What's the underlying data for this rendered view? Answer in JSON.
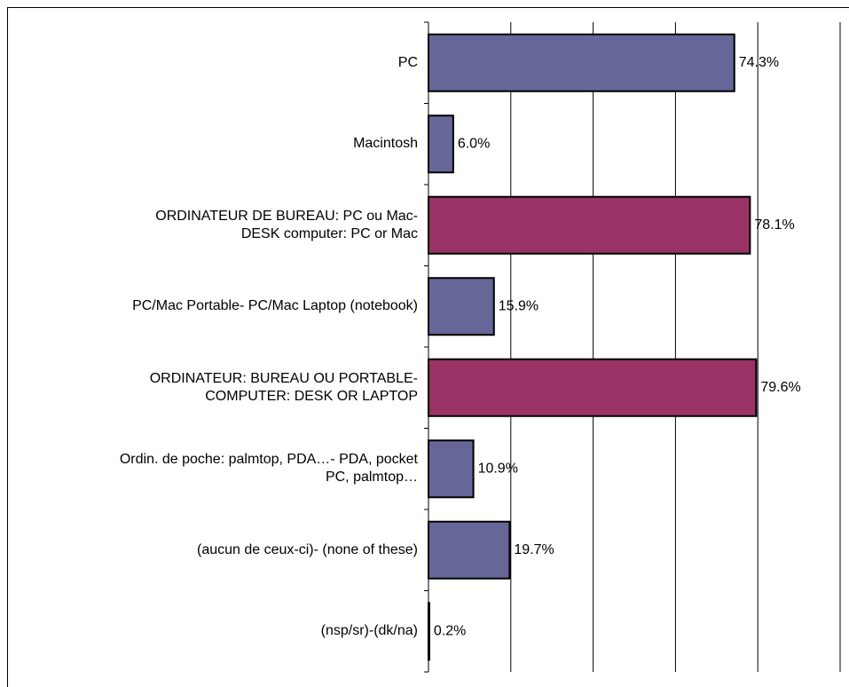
{
  "chart_data": {
    "type": "barh",
    "categories": [
      "PC",
      "Macintosh",
      "ORDINATEUR DE BUREAU: PC ou Mac-\nDESK computer: PC or Mac",
      "PC/Mac Portable- PC/Mac Laptop (notebook)",
      "ORDINATEUR: BUREAU OU PORTABLE-\nCOMPUTER: DESK OR LAPTOP",
      "Ordin. de poche: palmtop, PDA…- PDA, pocket\nPC, palmtop…",
      "(aucun de ceux-ci)- (none of these)",
      "(nsp/sr)-(dk/na)"
    ],
    "values": [
      74.3,
      6.0,
      78.1,
      15.9,
      79.6,
      10.9,
      19.7,
      0.2
    ],
    "value_labels": [
      "74.3%",
      "6.0%",
      "78.1%",
      "15.9%",
      "79.6%",
      "10.9%",
      "19.7%",
      "0.2%"
    ],
    "colors": [
      "#666699",
      "#666699",
      "#993366",
      "#666699",
      "#993366",
      "#666699",
      "#666699",
      "#666699"
    ],
    "xlim": [
      0,
      100
    ],
    "xticks": [
      0,
      20,
      40,
      60,
      80,
      100
    ],
    "grid": true
  }
}
